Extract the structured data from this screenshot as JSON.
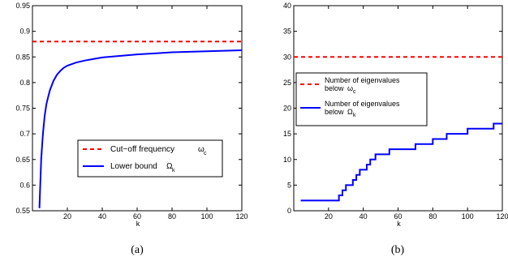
{
  "chart_data": [
    {
      "type": "line",
      "panel_label": "(a)",
      "xlabel": "k",
      "ylabel": "",
      "xlim": [
        0,
        120
      ],
      "ylim": [
        0.55,
        0.95
      ],
      "xticks": [
        "20",
        "40",
        "60",
        "80",
        "100",
        "120"
      ],
      "yticks": [
        "0.55",
        "0.6",
        "0.65",
        "0.7",
        "0.75",
        "0.8",
        "0.85",
        "0.9",
        "0.95"
      ],
      "legend_position": "center-right",
      "series": [
        {
          "name": "Cut−off frequency",
          "name_symbol": "ω",
          "name_subscript": "c",
          "style": "dashed",
          "color": "#ff0000",
          "x": [
            0,
            120
          ],
          "y": [
            0.88,
            0.88
          ]
        },
        {
          "name": "Lower bound",
          "name_symbol": "Ω",
          "name_subscript": "k",
          "style": "solid",
          "color": "#0000ff",
          "x": [
            4,
            5,
            6,
            7,
            8,
            9,
            10,
            12,
            14,
            16,
            18,
            20,
            25,
            30,
            35,
            40,
            50,
            60,
            70,
            80,
            90,
            100,
            110,
            120
          ],
          "y": [
            0.555,
            0.65,
            0.7,
            0.735,
            0.758,
            0.772,
            0.785,
            0.803,
            0.815,
            0.823,
            0.829,
            0.833,
            0.839,
            0.843,
            0.846,
            0.849,
            0.852,
            0.855,
            0.857,
            0.859,
            0.86,
            0.861,
            0.862,
            0.863
          ]
        }
      ]
    },
    {
      "type": "line",
      "panel_label": "(b)",
      "xlabel": "k",
      "ylabel": "",
      "xlim": [
        0,
        120
      ],
      "ylim": [
        0,
        40
      ],
      "xticks": [
        "20",
        "40",
        "60",
        "80",
        "100",
        "120"
      ],
      "yticks": [
        "0",
        "5",
        "10",
        "15",
        "20",
        "25",
        "30",
        "35",
        "40"
      ],
      "legend_position": "center-left",
      "series": [
        {
          "name_line1": "Number of eigenvalues",
          "name_line2": "below",
          "name_symbol": "ω",
          "name_subscript": "c",
          "style": "dashed",
          "color": "#ff0000",
          "x": [
            0,
            120
          ],
          "y": [
            30,
            30
          ]
        },
        {
          "name_line1": "Number of eigenvalues",
          "name_line2": "below",
          "name_symbol": "Ω",
          "name_subscript": "k",
          "style": "solid",
          "color": "#0000ff",
          "step": true,
          "x": [
            4,
            25,
            26,
            28,
            30,
            32,
            34,
            36,
            38,
            40,
            42,
            44,
            47,
            55,
            70,
            80,
            88,
            100,
            115,
            120
          ],
          "y": [
            2,
            2,
            3,
            4,
            5,
            5,
            6,
            7,
            8,
            8,
            9,
            10,
            11,
            12,
            13,
            14,
            15,
            16,
            17,
            17
          ]
        }
      ]
    }
  ]
}
